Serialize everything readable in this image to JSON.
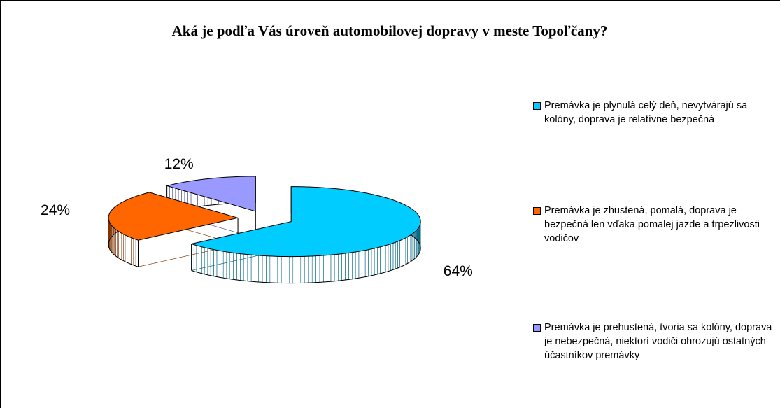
{
  "chart_data": {
    "type": "pie3d",
    "title": "Aká je podľa Vás úroveň automobilovej dopravy v meste Topoľčany?",
    "categories": [
      "Premávka je plynulá celý deň, nevytvárajú sa kolóny, doprava je relatívne bezpečná",
      "Premávka je zhustená, pomalá, doprava je bezpečná len vďaka pomalej jazde a trpezlivosti vodičov",
      "Premávka je prehustená, tvoria sa kolóny, doprava je nebezpečná, niektorí vodiči ohrozujú ostatných účastníkov premávky"
    ],
    "values": [
      64,
      24,
      12
    ],
    "value_labels": [
      "64%",
      "24%",
      "12%"
    ],
    "colors": [
      "#00ccff",
      "#ff6600",
      "#9999ff"
    ],
    "side_colors": [
      "#006680",
      "#803300",
      "#4c4c80"
    ],
    "legend": "right"
  }
}
